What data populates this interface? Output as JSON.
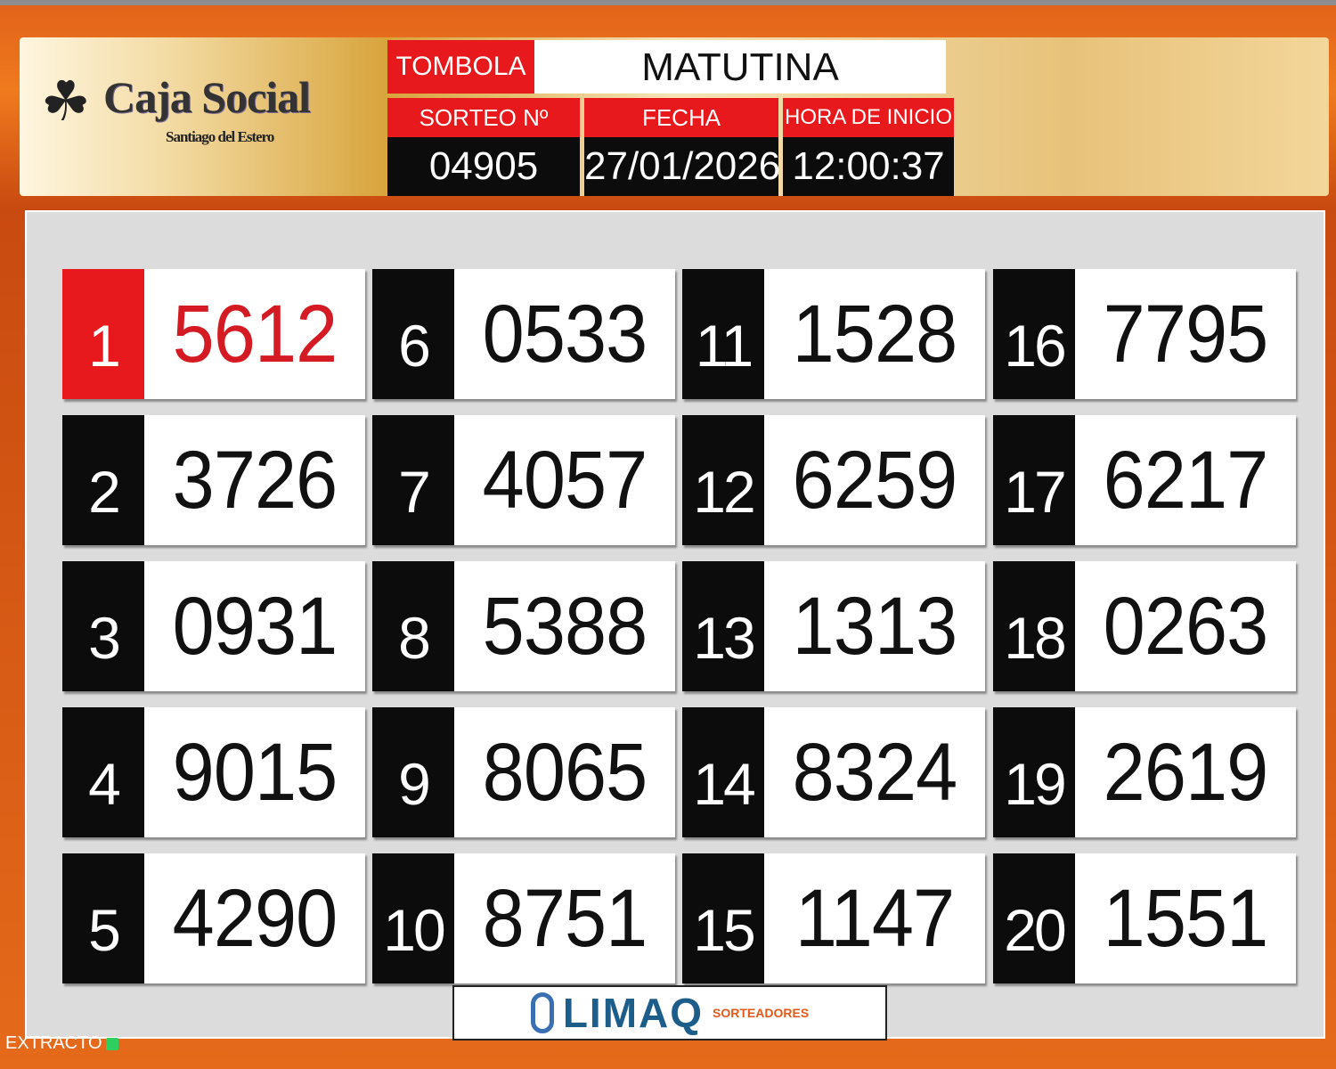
{
  "header": {
    "logo": {
      "title": "Caja Social",
      "subtitle": "Santiago del Estero"
    },
    "game_label": "TOMBOLA",
    "session": "MATUTINA",
    "draw_label": "SORTEO  Nº",
    "draw_number": "04905",
    "date_label": "FECHA",
    "date": "27/01/2026",
    "start_label": "HORA DE INICIO",
    "start_time": "12:00:37"
  },
  "results": [
    {
      "pos": "1",
      "num": "5612"
    },
    {
      "pos": "2",
      "num": "3726"
    },
    {
      "pos": "3",
      "num": "0931"
    },
    {
      "pos": "4",
      "num": "9015"
    },
    {
      "pos": "5",
      "num": "4290"
    },
    {
      "pos": "6",
      "num": "0533"
    },
    {
      "pos": "7",
      "num": "4057"
    },
    {
      "pos": "8",
      "num": "5388"
    },
    {
      "pos": "9",
      "num": "8065"
    },
    {
      "pos": "10",
      "num": "8751"
    },
    {
      "pos": "11",
      "num": "1528"
    },
    {
      "pos": "12",
      "num": "6259"
    },
    {
      "pos": "13",
      "num": "1313"
    },
    {
      "pos": "14",
      "num": "8324"
    },
    {
      "pos": "15",
      "num": "1147"
    },
    {
      "pos": "16",
      "num": "7795"
    },
    {
      "pos": "17",
      "num": "6217"
    },
    {
      "pos": "18",
      "num": "0263"
    },
    {
      "pos": "19",
      "num": "2619"
    },
    {
      "pos": "20",
      "num": "1551"
    }
  ],
  "sponsor": {
    "name": "LIMAQ",
    "tagline": "SORTEADORES"
  },
  "status": {
    "label": "EXTRACTO"
  },
  "colors": {
    "accent_red": "#e8191c",
    "frame_orange": "#e56a1a",
    "status_green": "#2ecf5e"
  }
}
